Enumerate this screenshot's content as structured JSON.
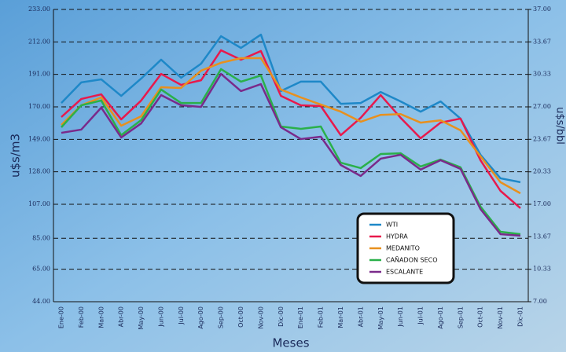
{
  "chart_data": {
    "type": "line",
    "ylabel": "u$s/m3",
    "y2label": "u$s/bbl",
    "xlabel": "Meses",
    "categories": [
      "Ene-00",
      "Feb-00",
      "Mar-00",
      "Abr-00",
      "May-00",
      "Jun-00",
      "Jul-00",
      "Ago-00",
      "Sep-00",
      "Oct-00",
      "Nov-00",
      "Dic-00",
      "Ene-01",
      "Feb-01",
      "Mar-01",
      "Abr-01",
      "May-01",
      "Jun-01",
      "Jul-01",
      "Ago-01",
      "Sep-01",
      "Oct-01",
      "Nov-01",
      "Dic-01"
    ],
    "series": [
      {
        "name": "WTI",
        "color": "#1e88c8",
        "values": [
          172.5,
          185.8,
          187.8,
          177.1,
          188.3,
          200.5,
          188.8,
          197.9,
          215.7,
          208.1,
          216.7,
          180.2,
          186.3,
          186.3,
          172.0,
          172.5,
          179.6,
          173.5,
          166.9,
          173.5,
          162.4,
          139.0,
          123.8,
          121.3
        ]
      },
      {
        "name": "HYDRA",
        "color": "#e8194c",
        "values": [
          163.4,
          175.1,
          178.1,
          161.9,
          174.1,
          191.3,
          184.2,
          187.2,
          206.6,
          200.5,
          206.1,
          177.1,
          171.0,
          170.5,
          151.7,
          162.9,
          177.6,
          162.9,
          149.7,
          159.8,
          162.4,
          135.5,
          115.7,
          104.5
        ]
      },
      {
        "name": "MEDANITO",
        "color": "#e8901e",
        "values": [
          158.3,
          171.0,
          176.1,
          157.8,
          163.9,
          182.7,
          182.2,
          193.4,
          198.5,
          201.5,
          201.5,
          181.2,
          176.1,
          171.5,
          166.9,
          160.4,
          164.8,
          165.3,
          159.8,
          161.3,
          154.8,
          138.0,
          121.3,
          114.1
        ]
      },
      {
        "name": "CAÑADON SECO",
        "color": "#2ab04a",
        "values": [
          156.8,
          171.0,
          174.1,
          151.7,
          161.4,
          181.2,
          172.5,
          172.5,
          194.4,
          186.3,
          190.3,
          157.3,
          155.8,
          157.3,
          133.9,
          130.4,
          139.5,
          140.0,
          131.4,
          135.9,
          130.9,
          105.5,
          89.2,
          87.7
        ]
      },
      {
        "name": "ESCALANTE",
        "color": "#7a2a8a",
        "values": [
          153.2,
          155.3,
          169.5,
          150.2,
          159.3,
          177.6,
          171.0,
          170.0,
          191.3,
          180.2,
          184.7,
          156.8,
          149.2,
          150.7,
          132.4,
          125.3,
          136.5,
          139.0,
          129.4,
          135.5,
          129.9,
          103.9,
          87.7,
          86.7
        ]
      }
    ],
    "ylim": [
      44,
      233
    ],
    "yticks": [
      {
        "value": 44,
        "label": "44.00"
      },
      {
        "value": 65,
        "label": "65.00"
      },
      {
        "value": 85,
        "label": "85.00"
      },
      {
        "value": 107,
        "label": "107.00"
      },
      {
        "value": 128,
        "label": "128.00"
      },
      {
        "value": 149,
        "label": "149.00"
      },
      {
        "value": 170,
        "label": "170.00"
      },
      {
        "value": 191,
        "label": "191.00"
      },
      {
        "value": 212,
        "label": "212.00"
      },
      {
        "value": 233,
        "label": "233.00"
      }
    ],
    "y2lim": [
      7,
      37
    ],
    "y2ticks": [
      {
        "value": 7,
        "label": "7.00"
      },
      {
        "value": 10.33,
        "label": "10.33"
      },
      {
        "value": 13.67,
        "label": "13.67"
      },
      {
        "value": 17,
        "label": "17.00"
      },
      {
        "value": 20.33,
        "label": "20.33"
      },
      {
        "value": 23.67,
        "label": "23.67"
      },
      {
        "value": 27,
        "label": "27.00"
      },
      {
        "value": 30.33,
        "label": "30.33"
      },
      {
        "value": 33.67,
        "label": "33.67"
      },
      {
        "value": 37,
        "label": "37.00"
      }
    ],
    "grid": true,
    "legend": "lower right"
  }
}
